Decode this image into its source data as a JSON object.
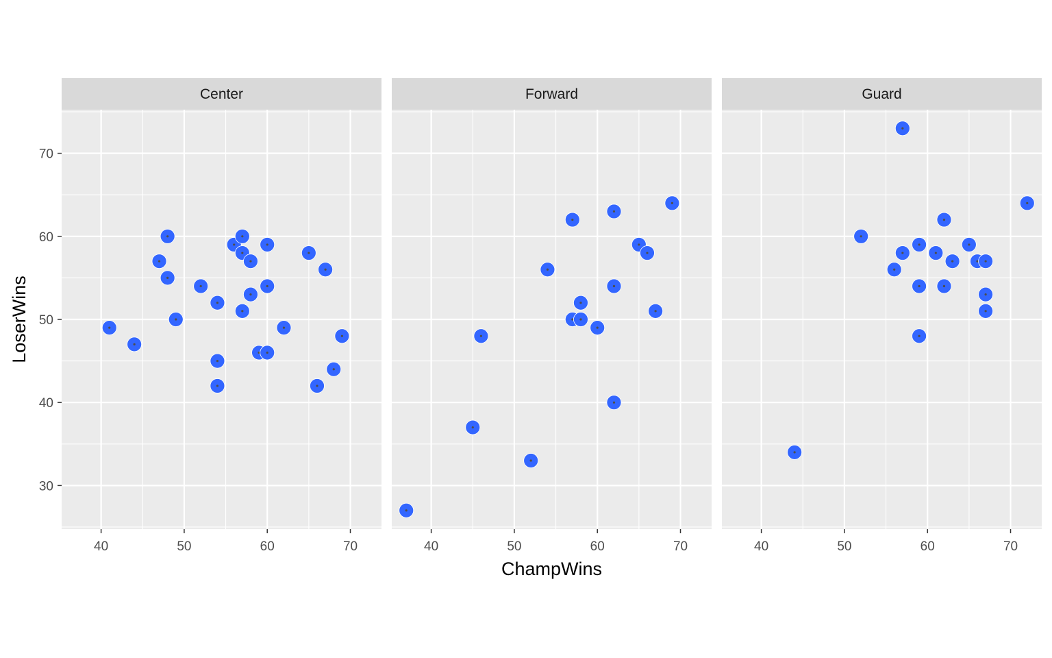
{
  "chart_data": {
    "type": "scatter",
    "xlabel": "ChampWins",
    "ylabel": "LoserWins",
    "xlim": [
      35.25,
      73.75
    ],
    "ylim": [
      24.75,
      75.25
    ],
    "x_ticks": [
      40,
      50,
      60,
      70
    ],
    "y_ticks": [
      30,
      40,
      50,
      60,
      70
    ],
    "grid": true,
    "point_color": "#3366FF",
    "center_color": "#4d4d4d",
    "panel_background": "#EBEBEB",
    "strip_background": "#D9D9D9",
    "facets": [
      {
        "label": "Center",
        "points": [
          [
            41,
            49
          ],
          [
            44,
            47
          ],
          [
            47,
            57
          ],
          [
            48,
            60
          ],
          [
            48,
            55
          ],
          [
            49,
            50
          ],
          [
            52,
            54
          ],
          [
            54,
            52
          ],
          [
            54,
            45
          ],
          [
            54,
            42
          ],
          [
            56,
            59
          ],
          [
            57,
            60
          ],
          [
            57,
            58
          ],
          [
            58,
            57
          ],
          [
            57,
            51
          ],
          [
            58,
            53
          ],
          [
            59,
            46
          ],
          [
            60,
            46
          ],
          [
            60,
            59
          ],
          [
            60,
            54
          ],
          [
            62,
            49
          ],
          [
            65,
            58
          ],
          [
            66,
            42
          ],
          [
            67,
            56
          ],
          [
            68,
            44
          ],
          [
            69,
            48
          ]
        ]
      },
      {
        "label": "Forward",
        "points": [
          [
            37,
            27
          ],
          [
            45,
            37
          ],
          [
            46,
            48
          ],
          [
            52,
            33
          ],
          [
            54,
            56
          ],
          [
            57,
            62
          ],
          [
            57,
            50
          ],
          [
            58,
            50
          ],
          [
            58,
            52
          ],
          [
            60,
            49
          ],
          [
            62,
            63
          ],
          [
            62,
            54
          ],
          [
            62,
            40
          ],
          [
            65,
            59
          ],
          [
            66,
            58
          ],
          [
            67,
            51
          ],
          [
            69,
            64
          ]
        ]
      },
      {
        "label": "Guard",
        "points": [
          [
            44,
            34
          ],
          [
            52,
            60
          ],
          [
            56,
            56
          ],
          [
            57,
            58
          ],
          [
            57,
            73
          ],
          [
            59,
            59
          ],
          [
            59,
            54
          ],
          [
            59,
            48
          ],
          [
            61,
            58
          ],
          [
            62,
            62
          ],
          [
            62,
            54
          ],
          [
            63,
            57
          ],
          [
            65,
            59
          ],
          [
            66,
            57
          ],
          [
            67,
            57
          ],
          [
            67,
            53
          ],
          [
            67,
            51
          ],
          [
            72,
            64
          ]
        ]
      }
    ]
  }
}
